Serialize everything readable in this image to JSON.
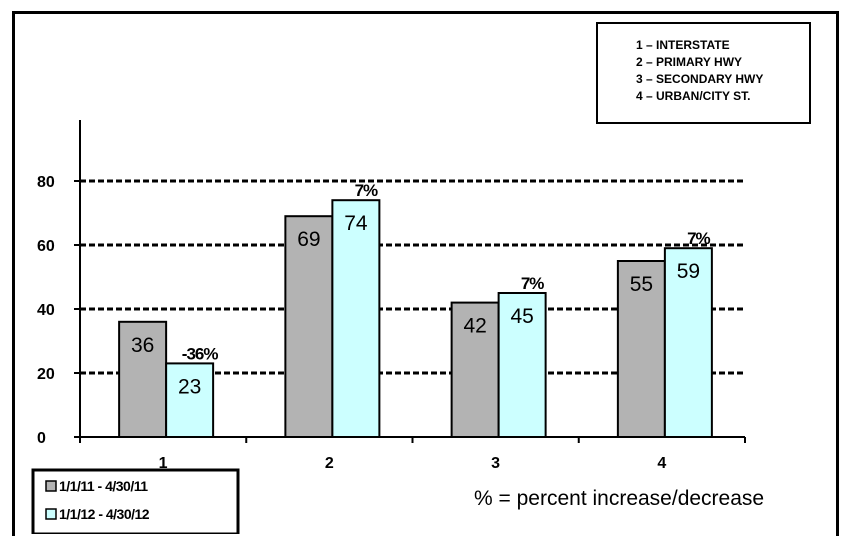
{
  "chart_data": {
    "type": "bar",
    "categories": [
      "1",
      "2",
      "3",
      "4"
    ],
    "series": [
      {
        "name": "1/1/11 - 4/30/11",
        "values": [
          36,
          69,
          42,
          55
        ],
        "color": "#b3b3b3"
      },
      {
        "name": "1/1/12 - 4/30/12",
        "values": [
          23,
          74,
          45,
          59
        ],
        "color": "#ccffff"
      }
    ],
    "value_labels": [
      [
        "36",
        "69",
        "42",
        "55"
      ],
      [
        "23",
        "74",
        "45",
        "59"
      ]
    ],
    "change_labels": [
      "-36%",
      "7%",
      "7%",
      "7%"
    ],
    "ylim": [
      0,
      100
    ],
    "yticks": [
      "0",
      "20",
      "40",
      "60",
      "80"
    ],
    "grid": "dashed horizontal",
    "legend_placement": "bottom-left",
    "key": [
      "1 – INTERSTATE",
      "2 – PRIMARY HWY",
      "3 – SECONDARY HWY",
      "4 – URBAN/CITY ST."
    ]
  },
  "note": "% = percent increase/decrease"
}
